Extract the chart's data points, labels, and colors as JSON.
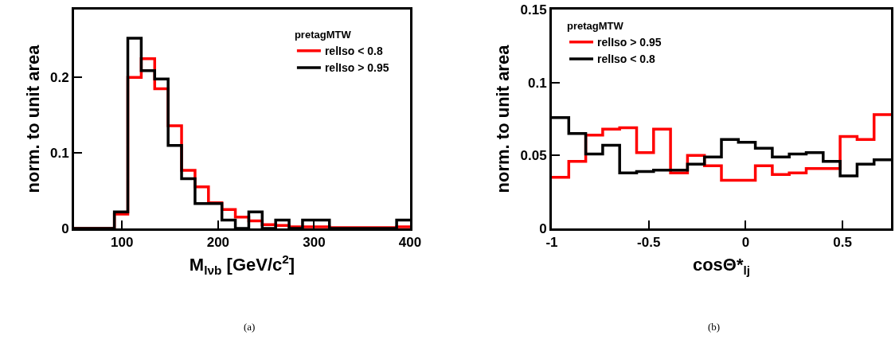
{
  "chart_data": [
    {
      "type": "histogram",
      "xlabel": "M$_{lνb}$ [GeV/c$^{2}$]",
      "ylabel": "norm. to unit area",
      "legend_title": "pretagMTW",
      "legend": "top right",
      "bins": [
        50,
        64,
        78,
        92,
        106,
        120,
        134,
        148,
        162,
        176,
        190,
        204,
        218,
        232,
        246,
        260,
        274,
        288,
        302,
        316,
        330,
        344,
        358,
        372,
        386,
        400
      ],
      "series": [
        {
          "name": "relIso < 0.8",
          "color": "#ff0000",
          "values": [
            0,
            0,
            0,
            0.019,
            0.2,
            0.225,
            0.185,
            0.136,
            0.077,
            0.055,
            0.034,
            0.025,
            0.015,
            0.01,
            0.005,
            0.004,
            0.002,
            0.002,
            0.002,
            0.001,
            0.001,
            0.001,
            0.001,
            0.001,
            0.002
          ]
        },
        {
          "name": "relIso > 0.95",
          "color": "#000000",
          "values": [
            0,
            0,
            0,
            0.022,
            0.252,
            0.209,
            0.198,
            0.11,
            0.066,
            0.033,
            0.033,
            0.011,
            0,
            0.022,
            0,
            0.011,
            0,
            0.011,
            0.011,
            0,
            0,
            0,
            0,
            0,
            0.011
          ]
        }
      ],
      "xlim": [
        50,
        400
      ],
      "xticks": [
        100,
        200,
        300,
        400
      ],
      "ylim": [
        0,
        0.29
      ],
      "yticks": [
        0,
        0.1,
        0.2
      ],
      "annotations": [
        "(a)"
      ]
    },
    {
      "type": "histogram",
      "xlabel": "cosΘ*$_{lj}$",
      "ylabel": "norm. to unit area",
      "legend_title": "pretagMTW",
      "legend": "top left",
      "bins": [
        -1,
        -0.9125,
        -0.825,
        -0.7375,
        -0.65,
        -0.5625,
        -0.475,
        -0.3875,
        -0.3,
        -0.2125,
        -0.125,
        -0.0375,
        0.05,
        0.1375,
        0.225,
        0.3125,
        0.4,
        0.4875,
        0.575,
        0.6625,
        0.75
      ],
      "series": [
        {
          "name": "relIso > 0.95",
          "color": "#ff0000",
          "values": [
            0.035,
            0.046,
            0.064,
            0.068,
            0.069,
            0.052,
            0.068,
            0.038,
            0.05,
            0.043,
            0.033,
            0.033,
            0.043,
            0.037,
            0.038,
            0.041,
            0.041,
            0.063,
            0.061,
            0.078
          ]
        },
        {
          "name": "relIso < 0.8",
          "color": "#000000",
          "values": [
            0.076,
            0.065,
            0.051,
            0.057,
            0.038,
            0.039,
            0.04,
            0.04,
            0.044,
            0.049,
            0.061,
            0.059,
            0.055,
            0.049,
            0.051,
            0.052,
            0.046,
            0.036,
            0.044,
            0.047
          ]
        }
      ],
      "xlim": [
        -1,
        0.75
      ],
      "xticks": [
        -1,
        -0.5,
        0,
        0.5
      ],
      "ylim": [
        0,
        0.15
      ],
      "yticks": [
        0,
        0.05,
        0.1,
        0.15
      ],
      "annotations": [
        "(b)"
      ]
    }
  ]
}
